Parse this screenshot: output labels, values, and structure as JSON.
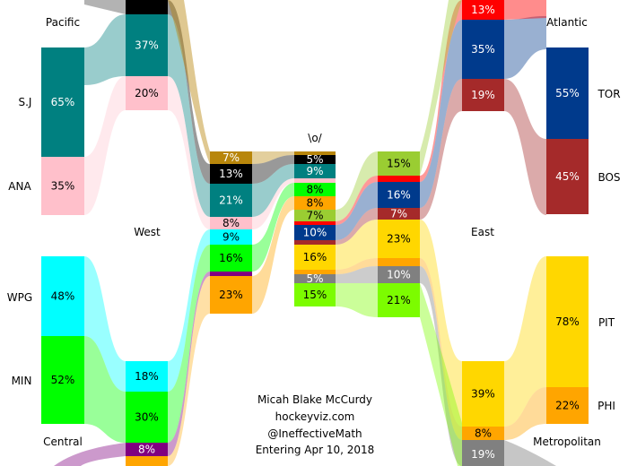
{
  "chart_data": {
    "type": "sankey",
    "center_label": "\\o/",
    "credits": [
      "Micah Blake McCurdy",
      "hockeyviz.com",
      "@IneffectiveMath",
      "Entering Apr 10, 2018"
    ],
    "colors": {
      "black": "#000000",
      "gold": "#b8860b",
      "teal": "#008080",
      "pink": "#ffc0cb",
      "cyan": "#00ffff",
      "green": "#00ff00",
      "purple": "#800080",
      "orange": "#ffa500",
      "red": "#ff0000",
      "navy": "#003a8c",
      "brown": "#a52a2a",
      "yellow": "#ffd700",
      "grey": "#808080",
      "lime": "#7cfc00",
      "yellowgreen": "#9acd32"
    },
    "divisions": [
      {
        "name": "Pacific",
        "teams": [
          {
            "team": "S.J",
            "value": 65,
            "color": "teal"
          },
          {
            "team": "ANA",
            "value": 35,
            "color": "pink"
          }
        ]
      },
      {
        "name": "Central",
        "teams": [
          {
            "team": "WPG",
            "value": 48,
            "color": "cyan"
          },
          {
            "team": "MIN",
            "value": 52,
            "color": "green"
          }
        ]
      },
      {
        "name": "Atlantic",
        "teams": [
          {
            "team": "TOR",
            "value": 55,
            "color": "navy"
          },
          {
            "team": "BOS",
            "value": 45,
            "color": "brown"
          }
        ]
      },
      {
        "name": "Metropolitan",
        "teams": [
          {
            "team": "PIT",
            "value": 78,
            "color": "yellow"
          },
          {
            "team": "PHI",
            "value": 22,
            "color": "orange"
          }
        ]
      }
    ],
    "round2": {
      "west_top": [
        {
          "value": null,
          "color": "black"
        },
        {
          "value": 37,
          "color": "teal"
        },
        {
          "value": 20,
          "color": "pink"
        }
      ],
      "west_bottom": [
        {
          "value": 18,
          "color": "cyan"
        },
        {
          "value": 30,
          "color": "green"
        },
        {
          "value": 8,
          "color": "purple"
        },
        {
          "value": null,
          "color": "orange"
        }
      ],
      "east_top": [
        {
          "value": 13,
          "color": "red"
        },
        {
          "value": 35,
          "color": "navy"
        },
        {
          "value": 19,
          "color": "brown"
        }
      ],
      "east_bottom": [
        {
          "value": 39,
          "color": "yellow"
        },
        {
          "value": 8,
          "color": "orange"
        },
        {
          "value": 19,
          "color": "grey"
        }
      ]
    },
    "conference_final": {
      "West": [
        {
          "value": 7,
          "color": "gold"
        },
        {
          "value": 13,
          "color": "black"
        },
        {
          "value": 21,
          "color": "teal"
        },
        {
          "value": 8,
          "color": "pink"
        },
        {
          "value": 9,
          "color": "cyan"
        },
        {
          "value": 16,
          "color": "green"
        },
        {
          "value": null,
          "color": "purple"
        },
        {
          "value": 23,
          "color": "orange"
        }
      ],
      "East": [
        {
          "value": 15,
          "color": "yellowgreen"
        },
        {
          "value": null,
          "color": "red"
        },
        {
          "value": 16,
          "color": "navy"
        },
        {
          "value": 7,
          "color": "brown"
        },
        {
          "value": 23,
          "color": "yellow"
        },
        {
          "value": null,
          "color": "orange"
        },
        {
          "value": 10,
          "color": "grey"
        },
        {
          "value": 21,
          "color": "lime"
        }
      ]
    },
    "champion": [
      {
        "value": null,
        "color": "gold"
      },
      {
        "value": 5,
        "color": "black"
      },
      {
        "value": 9,
        "color": "teal"
      },
      {
        "value": null,
        "color": "pink"
      },
      {
        "value": 8,
        "color": "green"
      },
      {
        "value": 8,
        "color": "orange"
      },
      {
        "value": 7,
        "color": "yellowgreen"
      },
      {
        "value": null,
        "color": "red"
      },
      {
        "value": 10,
        "color": "navy"
      },
      {
        "value": null,
        "color": "brown"
      },
      {
        "value": 16,
        "color": "yellow"
      },
      {
        "value": null,
        "color": "orange"
      },
      {
        "value": 5,
        "color": "grey"
      },
      {
        "value": 15,
        "color": "lime"
      }
    ]
  }
}
